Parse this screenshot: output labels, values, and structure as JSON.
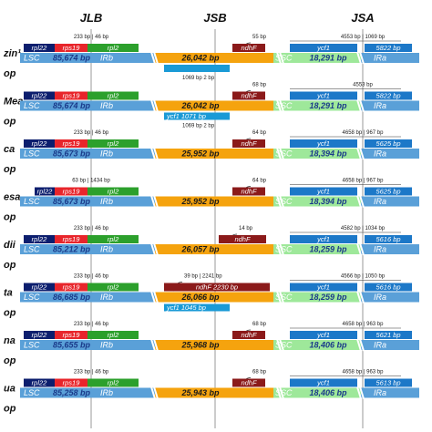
{
  "headers": [
    "JLB",
    "JSB",
    "JSA"
  ],
  "colors": {
    "lsc": "#5aa0d8",
    "irb": "#f5a30e",
    "ssc": "#9ee89a",
    "ira": "#5aa0d8",
    "rpl22": "#0c1e6e",
    "rps19": "#e8252b",
    "rpl2": "#2ca02c",
    "ndhF": "#8b1a1a",
    "ycf1": "#1c78c8",
    "trnH": "#1a9ad6"
  },
  "rows": [
    {
      "species": "zin¹",
      "sub": "op",
      "lsc": "85,674 bp",
      "irb": "26,042 bp",
      "ssc": "18,291 bp",
      "ira": "IRa",
      "top_genes": [
        {
          "name": "rpl22",
          "x": 26,
          "w": 34,
          "c": "rpl22"
        },
        {
          "name": "rps19",
          "x": 60,
          "w": 36,
          "c": "rps19"
        },
        {
          "name": "rpl2",
          "x": 96,
          "w": 56,
          "c": "rpl2"
        }
      ],
      "ndhF": {
        "name": "ndhF",
        "x": 255,
        "w": 36
      },
      "ycf1": {
        "name": "ycf1",
        "x": 318,
        "w": 74
      },
      "trn_ira": {
        "name": "5822 bp",
        "x": 400,
        "w": 52
      },
      "jlb_ann": "233 bp | 46 bp",
      "jsb_ann": "55 bp",
      "jsa_ann": "4553 bp | 1069 bp",
      "below": [
        {
          "name": "",
          "x": 180,
          "w": 72,
          "c": "trnH"
        }
      ],
      "below_ann": "1069 bp   2 bp"
    },
    {
      "species": "Mea",
      "sub": "op",
      "lsc": "85,674 bp",
      "irb": "26,042 bp",
      "ssc": "18,291 bp",
      "ira": "IRa",
      "top_genes": [
        {
          "name": "rpl22",
          "x": 26,
          "w": 34,
          "c": "rpl22"
        },
        {
          "name": "rps19",
          "x": 60,
          "w": 36,
          "c": "rps19"
        },
        {
          "name": "rpl2",
          "x": 96,
          "w": 56,
          "c": "rpl2"
        }
      ],
      "ndhF": {
        "name": "ndhF",
        "x": 255,
        "w": 36
      },
      "ycf1": {
        "name": "ycf1",
        "x": 318,
        "w": 74
      },
      "trn_ira": {
        "name": "5822 bp",
        "x": 400,
        "w": 52
      },
      "jlb_ann": "",
      "jsb_ann": "68 bp",
      "jsa_ann": "4553 bp",
      "below": [
        {
          "name": "ycf1  1071 bp",
          "x": 180,
          "w": 72,
          "c": "trnH"
        }
      ],
      "below_ann": "1069 bp   2 bp"
    },
    {
      "species": "ca",
      "sub": "op",
      "lsc": "85,673 bp",
      "irb": "25,952 bp",
      "ssc": "18,394 bp",
      "ira": "IRa",
      "top_genes": [
        {
          "name": "rpl22",
          "x": 26,
          "w": 34,
          "c": "rpl22"
        },
        {
          "name": "rps19",
          "x": 60,
          "w": 36,
          "c": "rps19"
        },
        {
          "name": "rpl2",
          "x": 96,
          "w": 56,
          "c": "rpl2"
        }
      ],
      "ndhF": {
        "name": "ndhF",
        "x": 255,
        "w": 36
      },
      "ycf1": {
        "name": "ycf1",
        "x": 318,
        "w": 74
      },
      "trn_ira": {
        "name": "5625 bp",
        "x": 400,
        "w": 52
      },
      "jlb_ann": "233 bp | 46 bp",
      "jsb_ann": "64 bp",
      "jsa_ann": "4658 bp | 967 bp",
      "below": [],
      "below_ann": ""
    },
    {
      "species": "esa",
      "sub": "op",
      "lsc": "85,673 bp",
      "irb": "25,952 bp",
      "ssc": "18,394 bp",
      "ira": "IRa",
      "top_genes": [
        {
          "name": "rpl22",
          "x": 38,
          "w": 22,
          "c": "rpl22"
        },
        {
          "name": "rps19",
          "x": 60,
          "w": 36,
          "c": "rps19"
        },
        {
          "name": "rpl2",
          "x": 96,
          "w": 56,
          "c": "rpl2"
        }
      ],
      "ndhF": {
        "name": "ndhF",
        "x": 255,
        "w": 36
      },
      "ycf1": {
        "name": "ycf1",
        "x": 318,
        "w": 74
      },
      "trn_ira": {
        "name": "5625 bp",
        "x": 400,
        "w": 52
      },
      "jlb_ann": "63 bp | 1434 bp",
      "jsb_ann": "64 bp",
      "jsa_ann": "4658 bp | 967 bp",
      "below": [],
      "below_ann": ""
    },
    {
      "species": "dii",
      "sub": "op",
      "lsc": "85,212 bp",
      "irb": "26,057 bp",
      "ssc": "18,259 bp",
      "ira": "IRa",
      "top_genes": [
        {
          "name": "rpl22",
          "x": 26,
          "w": 34,
          "c": "rpl22"
        },
        {
          "name": "rps19",
          "x": 60,
          "w": 36,
          "c": "rps19"
        },
        {
          "name": "rpl2",
          "x": 96,
          "w": 56,
          "c": "rpl2"
        }
      ],
      "ndhF": {
        "name": "ndhF",
        "x": 240,
        "w": 52
      },
      "ycf1": {
        "name": "ycf1",
        "x": 318,
        "w": 74
      },
      "trn_ira": {
        "name": "5616 bp",
        "x": 400,
        "w": 52
      },
      "jlb_ann": "233 bp | 46 bp",
      "jsb_ann": "14 bp",
      "jsa_ann": "4582 bp | 1034 bp",
      "below": [],
      "below_ann": ""
    },
    {
      "species": "ta",
      "sub": "op",
      "lsc": "86,685 bp",
      "irb": "26,066 bp",
      "ssc": "18,259 bp",
      "ira": "IRa",
      "top_genes": [
        {
          "name": "rpl22",
          "x": 26,
          "w": 34,
          "c": "rpl22"
        },
        {
          "name": "rps19",
          "x": 60,
          "w": 36,
          "c": "rps19"
        },
        {
          "name": "rpl2",
          "x": 96,
          "w": 56,
          "c": "rpl2"
        }
      ],
      "ndhF": {
        "name": "ndhF   2230 bp",
        "x": 180,
        "w": 116
      },
      "ycf1": {
        "name": "ycf1",
        "x": 318,
        "w": 74
      },
      "trn_ira": {
        "name": "5616 bp",
        "x": 400,
        "w": 52
      },
      "jlb_ann": "233 bp | 46 bp",
      "jsb_ann": "39 bp | 2241 bp",
      "jsa_ann": "4566 bp | 1050 bp",
      "below": [
        {
          "name": "ycf1  1045 bp",
          "x": 180,
          "w": 72,
          "c": "trnH"
        }
      ],
      "below_ann": ""
    },
    {
      "species": "na",
      "sub": "op",
      "lsc": "85,655 bp",
      "irb": "25,968 bp",
      "ssc": "18,406 bp",
      "ira": "IRa",
      "top_genes": [
        {
          "name": "rpl22",
          "x": 26,
          "w": 34,
          "c": "rpl22"
        },
        {
          "name": "rps19",
          "x": 60,
          "w": 36,
          "c": "rps19"
        },
        {
          "name": "rpl2",
          "x": 96,
          "w": 56,
          "c": "rpl2"
        }
      ],
      "ndhF": {
        "name": "ndhF",
        "x": 255,
        "w": 36
      },
      "ycf1": {
        "name": "ycf1",
        "x": 318,
        "w": 74
      },
      "trn_ira": {
        "name": "5621 bp",
        "x": 400,
        "w": 52
      },
      "jlb_ann": "233 bp | 46 bp",
      "jsb_ann": "68 bp",
      "jsa_ann": "4658 bp | 963 bp",
      "below": [],
      "below_ann": ""
    },
    {
      "species": "ua",
      "sub": "op",
      "lsc": "85,258 bp",
      "irb": "25,943 bp",
      "ssc": "18,406 bp",
      "ira": "IRa",
      "top_genes": [
        {
          "name": "rpl22",
          "x": 26,
          "w": 34,
          "c": "rpl22"
        },
        {
          "name": "rps19",
          "x": 60,
          "w": 36,
          "c": "rps19"
        },
        {
          "name": "rpl2",
          "x": 96,
          "w": 56,
          "c": "rpl2"
        }
      ],
      "ndhF": {
        "name": "ndhF",
        "x": 255,
        "w": 36
      },
      "ycf1": {
        "name": "ycf1",
        "x": 318,
        "w": 74
      },
      "trn_ira": {
        "name": "5613 bp",
        "x": 400,
        "w": 52
      },
      "jlb_ann": "233 bp | 46 bp",
      "jsb_ann": "68 bp",
      "jsa_ann": "4658 bp | 963 bp",
      "below": [],
      "below_ann": ""
    }
  ]
}
